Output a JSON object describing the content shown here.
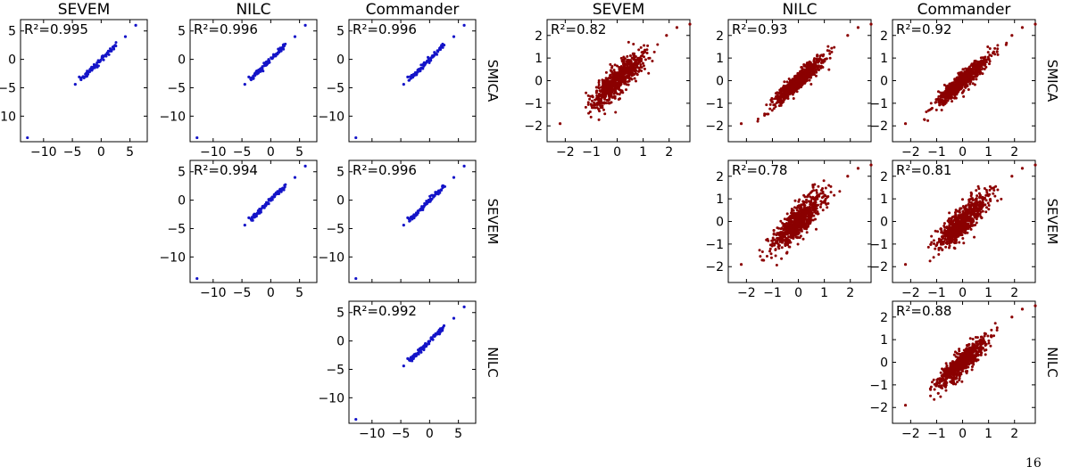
{
  "page": {
    "number": "16"
  },
  "colors": {
    "left_group": "#1414c8",
    "right_group": "#8b0000"
  },
  "chart_data": [
    {
      "type": "scatter",
      "group": "left",
      "row": 0,
      "col": 0,
      "title": "SEVEM",
      "row_label": "",
      "annotation": "R²=0.995",
      "r2": 0.995,
      "xlim": [
        -14,
        8
      ],
      "ylim": [
        -14.5,
        7
      ],
      "xticks": [
        "−10",
        "−5",
        "0",
        "5"
      ],
      "yticks": [
        "−10",
        "−5",
        "0",
        "5"
      ]
    },
    {
      "type": "scatter",
      "group": "left",
      "row": 0,
      "col": 1,
      "title": "NILC",
      "row_label": "",
      "annotation": "R²=0.996",
      "r2": 0.996,
      "xlim": [
        -14,
        8
      ],
      "ylim": [
        -14.5,
        7
      ],
      "xticks": [
        "−10",
        "−5",
        "0",
        "5"
      ],
      "yticks": [
        "−10",
        "−5",
        "0",
        "5"
      ]
    },
    {
      "type": "scatter",
      "group": "left",
      "row": 0,
      "col": 2,
      "title": "Commander",
      "row_label": "SMICA",
      "annotation": "R²=0.996",
      "r2": 0.996,
      "xlim": [
        -14,
        8
      ],
      "ylim": [
        -14.5,
        7
      ],
      "xticks": [],
      "yticks": [
        "−10",
        "−5",
        "0",
        "5"
      ]
    },
    {
      "type": "scatter",
      "group": "left",
      "row": 1,
      "col": 1,
      "title": "",
      "row_label": "",
      "annotation": "R²=0.994",
      "r2": 0.994,
      "xlim": [
        -14,
        8
      ],
      "ylim": [
        -14.5,
        7
      ],
      "xticks": [
        "−10",
        "−5",
        "0",
        "5"
      ],
      "yticks": [
        "−10",
        "−5",
        "0",
        "5"
      ]
    },
    {
      "type": "scatter",
      "group": "left",
      "row": 1,
      "col": 2,
      "title": "",
      "row_label": "SEVEM",
      "annotation": "R²=0.996",
      "r2": 0.996,
      "xlim": [
        -14,
        8
      ],
      "ylim": [
        -14.5,
        7
      ],
      "xticks": [],
      "yticks": [
        "−10",
        "−5",
        "0",
        "5"
      ]
    },
    {
      "type": "scatter",
      "group": "left",
      "row": 2,
      "col": 2,
      "title": "",
      "row_label": "NILC",
      "annotation": "R²=0.992",
      "r2": 0.992,
      "xlim": [
        -14,
        8
      ],
      "ylim": [
        -14.5,
        7
      ],
      "xticks": [
        "−10",
        "−5",
        "0",
        "5"
      ],
      "yticks": [
        "−10",
        "−5",
        "0",
        "5"
      ]
    },
    {
      "type": "scatter",
      "group": "right",
      "row": 0,
      "col": 0,
      "title": "SEVEM",
      "row_label": "",
      "annotation": "R²=0.82",
      "r2": 0.82,
      "xlim": [
        -2.7,
        2.8
      ],
      "ylim": [
        -2.7,
        2.7
      ],
      "xticks": [
        "−2",
        "−1",
        "0",
        "1",
        "2"
      ],
      "yticks": [
        "−2",
        "−1",
        "0",
        "1",
        "2"
      ]
    },
    {
      "type": "scatter",
      "group": "right",
      "row": 0,
      "col": 1,
      "title": "NILC",
      "row_label": "",
      "annotation": "R²=0.93",
      "r2": 0.93,
      "xlim": [
        -2.7,
        2.8
      ],
      "ylim": [
        -2.7,
        2.7
      ],
      "xticks": [],
      "yticks": [
        "−2",
        "−1",
        "0",
        "1",
        "2"
      ]
    },
    {
      "type": "scatter",
      "group": "right",
      "row": 0,
      "col": 2,
      "title": "Commander",
      "row_label": "SMICA",
      "annotation": "R²=0.92",
      "r2": 0.92,
      "xlim": [
        -2.7,
        2.8
      ],
      "ylim": [
        -2.7,
        2.7
      ],
      "xticks": [
        "−2",
        "−1",
        "0",
        "1",
        "2"
      ],
      "yticks": [
        "−2",
        "−1",
        "0",
        "1",
        "2"
      ]
    },
    {
      "type": "scatter",
      "group": "right",
      "row": 1,
      "col": 1,
      "title": "",
      "row_label": "",
      "annotation": "R²=0.78",
      "r2": 0.78,
      "xlim": [
        -2.7,
        2.8
      ],
      "ylim": [
        -2.7,
        2.7
      ],
      "xticks": [
        "−2",
        "−1",
        "0",
        "1",
        "2"
      ],
      "yticks": [
        "−2",
        "−1",
        "0",
        "1",
        "2"
      ]
    },
    {
      "type": "scatter",
      "group": "right",
      "row": 1,
      "col": 2,
      "title": "",
      "row_label": "SEVEM",
      "annotation": "R²=0.81",
      "r2": 0.81,
      "xlim": [
        -2.7,
        2.8
      ],
      "ylim": [
        -2.7,
        2.7
      ],
      "xticks": [
        "−2",
        "−1",
        "0",
        "1",
        "2"
      ],
      "yticks": [
        "−2",
        "−1",
        "0",
        "1",
        "2"
      ]
    },
    {
      "type": "scatter",
      "group": "right",
      "row": 2,
      "col": 2,
      "title": "",
      "row_label": "NILC",
      "annotation": "R²=0.88",
      "r2": 0.88,
      "xlim": [
        -2.7,
        2.8
      ],
      "ylim": [
        -2.7,
        2.7
      ],
      "xticks": [
        "−2",
        "−1",
        "0",
        "1",
        "2"
      ],
      "yticks": [
        "−2",
        "−1",
        "0",
        "1",
        "2"
      ]
    }
  ]
}
